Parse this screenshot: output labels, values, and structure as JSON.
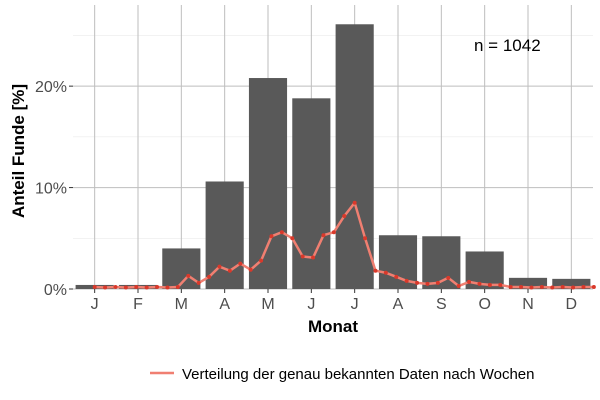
{
  "chart_data": {
    "type": "bar",
    "xlabel": "Monat",
    "ylabel": "Anteil Funde [%]",
    "categories": [
      "J",
      "F",
      "M",
      "A",
      "M",
      "J",
      "J",
      "A",
      "S",
      "O",
      "N",
      "D"
    ],
    "values": [
      0.4,
      0.4,
      4.0,
      10.6,
      20.8,
      18.8,
      26.1,
      5.3,
      5.2,
      3.7,
      1.1,
      1.0
    ],
    "ylim": [
      0,
      28
    ],
    "y_ticks": [
      {
        "value": 0,
        "label": "0%"
      },
      {
        "value": 10,
        "label": "10%"
      },
      {
        "value": 20,
        "label": "20%"
      }
    ],
    "grid": true,
    "annotation": "n = 1042",
    "bar_color": "#595959",
    "line_series": {
      "name": "Verteilung der genau bekannten Daten nach Wochen",
      "color": "#f07f71",
      "point_color": "#d9392b",
      "x_month": [
        1.0,
        1.24,
        1.48,
        1.72,
        1.96,
        2.2,
        2.44,
        2.68,
        2.92,
        3.16,
        3.4,
        3.64,
        3.88,
        4.12,
        4.36,
        4.6,
        4.84,
        5.08,
        5.32,
        5.56,
        5.8,
        6.04,
        6.28,
        6.52,
        6.76,
        7.0,
        7.24,
        7.48,
        7.72,
        7.96,
        8.2,
        8.44,
        8.68,
        8.92,
        9.16,
        9.4,
        9.64,
        9.88,
        10.12,
        10.36,
        10.6,
        10.84,
        11.08,
        11.32,
        11.56,
        11.8,
        12.04,
        12.28,
        12.52
      ],
      "y": [
        0.2,
        0.15,
        0.2,
        0.15,
        0.2,
        0.15,
        0.2,
        0.15,
        0.2,
        1.3,
        0.6,
        1.2,
        2.2,
        1.8,
        2.5,
        1.9,
        2.8,
        5.2,
        5.6,
        5.0,
        3.2,
        3.1,
        5.3,
        5.6,
        7.2,
        8.5,
        5.0,
        1.8,
        1.6,
        1.2,
        0.8,
        0.6,
        0.5,
        0.6,
        1.1,
        0.3,
        0.7,
        0.5,
        0.4,
        0.4,
        0.2,
        0.2,
        0.15,
        0.2,
        0.15,
        0.2,
        0.15,
        0.2,
        0.2
      ]
    }
  }
}
